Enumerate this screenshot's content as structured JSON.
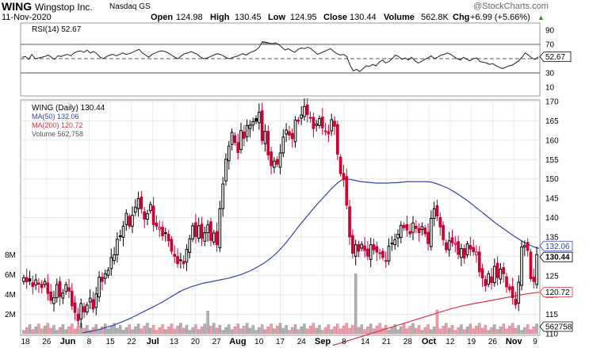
{
  "header": {
    "symbol": "WING",
    "company": "Wingstop Inc.",
    "exchange": "Nasdaq GS",
    "date": "11-Nov-2020",
    "open_label": "Open",
    "open": "124.98",
    "high_label": "High",
    "high": "130.45",
    "low_label": "Low",
    "low": "124.95",
    "close_label": "Close",
    "close": "130.44",
    "volume_label": "Volume",
    "volume": "562.8K",
    "chg_label": "Chg",
    "chg": "+6.99 (+5.66%)",
    "chg_arrow": "▲",
    "brand": "@StockCharts.com"
  },
  "colors": {
    "up": "#000000",
    "down": "#cc0033",
    "ma50": "#3344aa",
    "ma200": "#dd3344",
    "volume_up": "#b0b0b0",
    "volume_down": "#e8a0ae",
    "rsi_fill": "#449944"
  },
  "chart_data": {
    "type": "candlestick",
    "date_labels": [
      "18",
      "26",
      "Jun",
      "8",
      "15",
      "22",
      "Jul",
      "13",
      "20",
      "27",
      "Aug",
      "10",
      "17",
      "24",
      "Sep",
      "8",
      "14",
      "21",
      "28",
      "Oct",
      "12",
      "19",
      "26",
      "Nov",
      "9"
    ],
    "price_axis": {
      "min": 110,
      "max": 170,
      "ticks": [
        110,
        115,
        120,
        125,
        130,
        135,
        140,
        145,
        150,
        155,
        160,
        165,
        170
      ]
    },
    "volume_axis": {
      "ticks_labels": [
        "2M",
        "4M",
        "6M",
        "8M"
      ],
      "ticks": [
        2,
        4,
        6,
        8
      ],
      "unit": "M"
    },
    "rsi": {
      "label": "RSI(14) 52.67",
      "value": "52.67",
      "ticks": [
        10,
        30,
        50,
        70,
        90
      ],
      "overbought": 70,
      "oversold": 30,
      "values": [
        52,
        53,
        49,
        56,
        50,
        51,
        52,
        53,
        55,
        52,
        49,
        54,
        53,
        55,
        56,
        54,
        58,
        60,
        61,
        59,
        62,
        58,
        60,
        57,
        52,
        50,
        53,
        55,
        56,
        54,
        56,
        58,
        56,
        57,
        59,
        61,
        63,
        58,
        55,
        52,
        56,
        58,
        60,
        61,
        60,
        58,
        55,
        52,
        50,
        54,
        57,
        58,
        60,
        58,
        56,
        52,
        50,
        51,
        53,
        55,
        57,
        56,
        54,
        51,
        50,
        52,
        53,
        55,
        57,
        55,
        58,
        60,
        62,
        66,
        74,
        73,
        72,
        71,
        72,
        70,
        66,
        62,
        64,
        61,
        59,
        63,
        65,
        64,
        66,
        64,
        60,
        56,
        58,
        60,
        62,
        64,
        60,
        57,
        55,
        56,
        53,
        41,
        33,
        35,
        32,
        36,
        40,
        39,
        42,
        40,
        45,
        48,
        44,
        46,
        50,
        55,
        53,
        49,
        51,
        48,
        52,
        47,
        44,
        46,
        49,
        51,
        54,
        50,
        52,
        55,
        56,
        58,
        56,
        53,
        50,
        48,
        52,
        49,
        47,
        50,
        51,
        46,
        45,
        44,
        42,
        43,
        40,
        38,
        36,
        38,
        40,
        41,
        44,
        47,
        52,
        58,
        55,
        51,
        49,
        52.67
      ]
    },
    "legend": {
      "title": "WING (Daily) 130.44",
      "ma50": "MA(50) 132.06",
      "ma200": "MA(200) 120.72",
      "volume": "Volume 562,758"
    },
    "price_tags": {
      "ma50": "132.06",
      "close": "130.44",
      "ma200": "120.72",
      "volume": "562758"
    },
    "closes": [
      124.5,
      123.4,
      123.6,
      122.2,
      123.9,
      122.8,
      121.9,
      123.5,
      120.4,
      118.6,
      119.3,
      122.7,
      119.6,
      120.5,
      122.7,
      121.0,
      117.2,
      115.5,
      113.4,
      117.8,
      115.6,
      117.4,
      119.2,
      116.4,
      120.3,
      124.6,
      123.5,
      125.5,
      126.4,
      129.7,
      130.4,
      134.4,
      135.3,
      137.8,
      141.1,
      137.8,
      140.6,
      142.7,
      144.9,
      142.3,
      139.6,
      141.0,
      143.4,
      138.2,
      137.8,
      137.5,
      135.3,
      136.1,
      134.0,
      131.3,
      130.0,
      128.1,
      129.1,
      128.1,
      131.8,
      134.5,
      137.9,
      135.1,
      137.9,
      134.7,
      136.1,
      138.1,
      134.1,
      136.0,
      133.0,
      142.3,
      148.7,
      155.1,
      158.5,
      162.0,
      159.4,
      156.8,
      162.5,
      160.5,
      163.8,
      163.9,
      164.8,
      164.9,
      167.2,
      159.9,
      162.3,
      156.2,
      153.4,
      154.6,
      153.8,
      156.7,
      160.8,
      162.6,
      161.3,
      160.4,
      165.2,
      164.9,
      166.5,
      168.7,
      166.6,
      165.9,
      163.0,
      164.2,
      165.6,
      163.2,
      162.2,
      161.6,
      165.3,
      163.6,
      156.4,
      151.4,
      149.8,
      143.2,
      135.0,
      130.8,
      133.0,
      131.3,
      133.1,
      131.5,
      130.0,
      133.0,
      131.7,
      131.1,
      130.9,
      129.7,
      128.8,
      132.6,
      133.4,
      134.3,
      135.7,
      138.0,
      137.4,
      136.8,
      135.8,
      138.6,
      137.2,
      136.1,
      137.7,
      135.8,
      133.3,
      139.8,
      142.3,
      140.4,
      137.6,
      134.3,
      131.7,
      134.0,
      133.5,
      133.4,
      130.5,
      132.0,
      129.6,
      133.2,
      131.9,
      131.2,
      131.1,
      126.0,
      124.4,
      122.4,
      125.5,
      123.2,
      127.4,
      124.5,
      126.7,
      125.5,
      122.1,
      121.4,
      119.3,
      117.5,
      123.3,
      132.4,
      132.8,
      131.5,
      124.2,
      123.5,
      130.44
    ],
    "ma50": [
      110.2,
      110.4,
      110.6,
      110.8,
      111.0,
      111.3,
      111.6,
      111.9,
      112.2,
      112.6,
      113.0,
      113.4,
      113.8,
      114.3,
      114.8,
      115.3,
      115.8,
      116.3,
      116.8,
      117.3,
      117.8,
      118.4,
      119.0,
      119.6,
      120.2,
      120.8,
      121.3,
      121.7,
      122.1,
      122.4,
      122.7,
      123.0,
      123.2,
      123.4,
      123.6,
      123.8,
      124.0,
      124.2,
      124.4,
      124.7,
      125.0,
      125.3,
      125.7,
      126.1,
      126.6,
      127.1,
      127.7,
      128.3,
      129.0,
      129.8,
      130.7,
      131.7,
      132.8,
      134.0,
      135.3,
      136.6,
      137.9,
      139.1,
      140.3,
      141.5,
      142.7,
      143.8,
      144.9,
      146.0,
      147.1,
      148.1,
      149.0,
      149.7,
      150.0,
      149.9,
      149.7,
      149.5,
      149.3,
      149.2,
      149.1,
      149.0,
      148.9,
      148.9,
      148.9,
      148.9,
      149.0,
      149.0,
      149.1,
      149.2,
      149.3,
      149.3,
      149.3,
      149.3,
      149.3,
      149.3,
      149.2,
      148.9,
      148.6,
      148.2,
      147.8,
      147.3,
      146.7,
      146.1,
      145.4,
      144.7,
      144.0,
      143.2,
      142.4,
      141.6,
      140.8,
      140.0,
      139.2,
      138.4,
      137.7,
      137.0,
      136.3,
      135.6,
      134.9,
      134.3,
      133.7,
      133.2,
      132.7,
      132.3,
      132.06
    ],
    "ma200": [
      107.0,
      107.5,
      108.0,
      108.5,
      109.0,
      109.5,
      110.0,
      110.5,
      111.0,
      111.5,
      112.0,
      112.5,
      113.0,
      113.5,
      114.0,
      114.5,
      115.0,
      115.5,
      116.0,
      116.5,
      116.9,
      117.3,
      117.6,
      117.9,
      118.2,
      118.5,
      118.8,
      119.1,
      119.4,
      119.7,
      120.0,
      120.3,
      120.5,
      120.72
    ]
  }
}
